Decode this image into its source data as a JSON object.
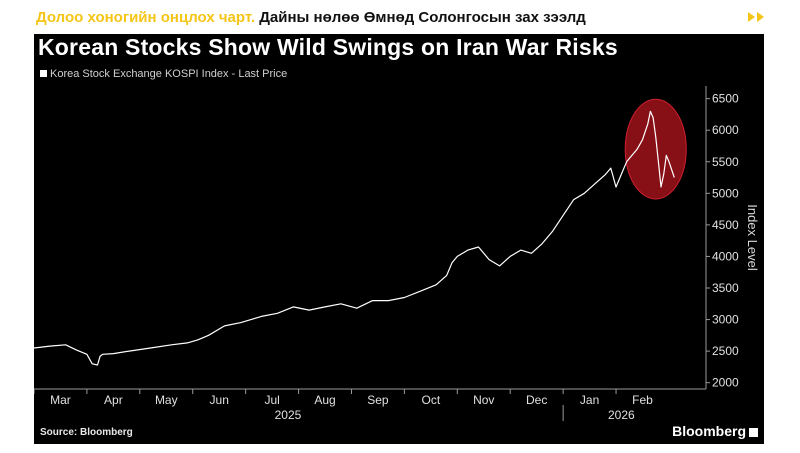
{
  "header": {
    "caption_highlight": "Долоо хоногийн онцлох чарт.",
    "caption_text": "Дайны нөлөө Өмнөд Солонгосын зах зээлд",
    "arrow_icon": "double-chevron-right-icon",
    "arrow_color": "#f5c518"
  },
  "chart_data": {
    "type": "line",
    "title": "Korean Stocks Show Wild Swings on Iran War Risks",
    "legend": [
      "Korea Stock Exchange KOSPI Index - Last Price"
    ],
    "xlabel": "",
    "ylabel": "Index Level",
    "ylim": [
      1900,
      6700
    ],
    "yticks": [
      2000,
      2500,
      3000,
      3500,
      4000,
      4500,
      5000,
      5500,
      6000,
      6500
    ],
    "month_labels": [
      "Mar",
      "Apr",
      "May",
      "Jun",
      "Jul",
      "Aug",
      "Sep",
      "Oct",
      "Nov",
      "Dec",
      "Jan",
      "Feb"
    ],
    "year_labels": [
      "2025",
      "2026"
    ],
    "x_unit": "months since start of Mar 2025",
    "xlim": [
      0,
      12.7
    ],
    "series": [
      {
        "name": "Korea Stock Exchange KOSPI Index - Last Price",
        "x": [
          0.0,
          0.3,
          0.6,
          0.8,
          1.0,
          1.1,
          1.2,
          1.25,
          1.3,
          1.5,
          1.8,
          2.2,
          2.6,
          2.9,
          3.1,
          3.3,
          3.6,
          3.9,
          4.3,
          4.6,
          4.9,
          5.2,
          5.5,
          5.8,
          6.1,
          6.4,
          6.7,
          7.0,
          7.3,
          7.6,
          7.8,
          7.9,
          8.0,
          8.2,
          8.4,
          8.6,
          8.8,
          9.0,
          9.2,
          9.4,
          9.6,
          9.8,
          10.0,
          10.2,
          10.4,
          10.6,
          10.8,
          10.9,
          11.0,
          11.1,
          11.2,
          11.3,
          11.4,
          11.5,
          11.6,
          11.65,
          11.7,
          11.75,
          11.8,
          11.85,
          11.9,
          11.95,
          12.0,
          12.1
        ],
        "y": [
          2550,
          2580,
          2600,
          2520,
          2450,
          2300,
          2280,
          2420,
          2450,
          2460,
          2500,
          2550,
          2600,
          2630,
          2680,
          2750,
          2900,
          2950,
          3050,
          3100,
          3200,
          3150,
          3200,
          3250,
          3180,
          3300,
          3300,
          3350,
          3450,
          3550,
          3700,
          3900,
          4000,
          4100,
          4150,
          3950,
          3850,
          4000,
          4100,
          4050,
          4200,
          4400,
          4650,
          4900,
          5000,
          5150,
          5300,
          5400,
          5100,
          5300,
          5500,
          5600,
          5700,
          5850,
          6100,
          6300,
          6200,
          5900,
          5500,
          5100,
          5300,
          5600,
          5500,
          5250
        ]
      }
    ],
    "annotation": "circle highlighting late-Feb 2026 swing",
    "line_color": "#ffffff",
    "highlight_color": "#b4141e"
  },
  "footer": {
    "source": "Source: Bloomberg",
    "brand": "Bloomberg"
  }
}
